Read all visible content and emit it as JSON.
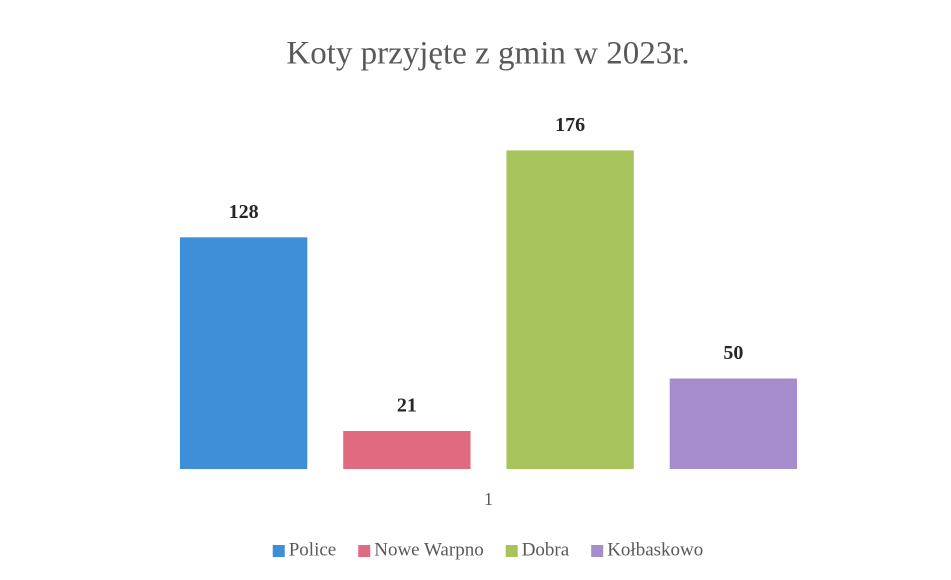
{
  "chart_data": {
    "type": "bar",
    "title": "Koty przyjęte z gmin w 2023r.",
    "categories": [
      "1"
    ],
    "series": [
      {
        "name": "Police",
        "color": "#3f8fd8",
        "values": [
          128
        ]
      },
      {
        "name": "Nowe Warpno",
        "color": "#e06b80",
        "values": [
          21
        ]
      },
      {
        "name": "Dobra",
        "color": "#a6c35c",
        "values": [
          176
        ]
      },
      {
        "name": "Kołbaskowo",
        "color": "#a58ccb",
        "values": [
          50
        ]
      }
    ],
    "ylim": [
      0,
      200
    ],
    "legend": "bottom"
  }
}
